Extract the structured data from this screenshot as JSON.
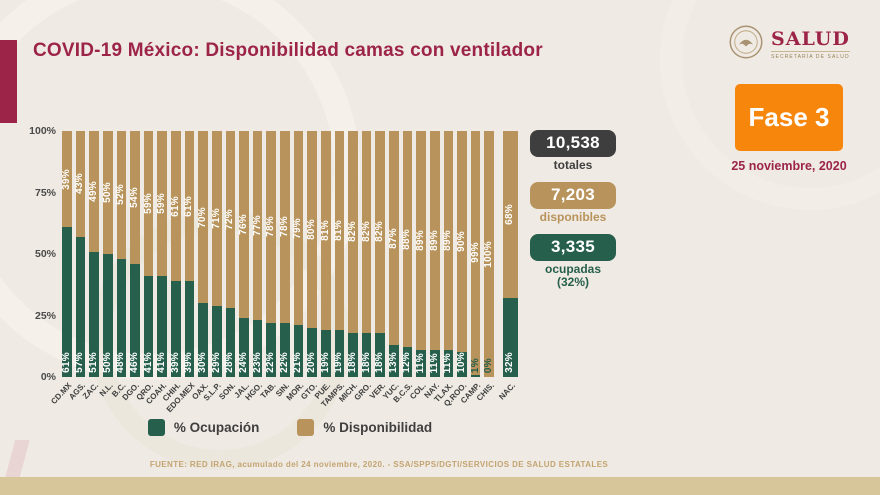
{
  "header": {
    "title": "COVID-19 México: Disponibilidad camas con ventilador",
    "logo_name": "SALUD",
    "logo_subtitle": "SECRETARÍA DE SALUD",
    "phase_badge": "Fase 3",
    "date": "25 noviembre, 2020"
  },
  "stats": [
    {
      "value": "10,538",
      "label": "totales",
      "color": "#3F3E3E"
    },
    {
      "value": "7,203",
      "label": "disponibles",
      "color": "#B8935B"
    },
    {
      "value": "3,335",
      "label": "ocupadas (32%)",
      "label_line1": "ocupadas",
      "label_line2": "(32%)",
      "color": "#265F4C"
    }
  ],
  "chart_data": {
    "type": "bar",
    "stacked": true,
    "title": "COVID-19 México: Disponibilidad camas con ventilador",
    "categories": [
      "CD.MX",
      "AGS.",
      "ZAC.",
      "N.L.",
      "B.C.",
      "DGO.",
      "QRO.",
      "COAH.",
      "CHIH.",
      "EDO.MEX",
      "OAX.",
      "S.L.P.",
      "SON.",
      "JAL.",
      "HGO.",
      "TAB.",
      "SIN.",
      "MOR.",
      "GTO.",
      "PUE.",
      "TAMPS.",
      "MICH.",
      "GRO.",
      "VER.",
      "YUC.",
      "B.C.S.",
      "COL.",
      "NAY.",
      "TLAX.",
      "Q.ROO.",
      "CAMP.",
      "CHIS.",
      "NAC."
    ],
    "series": [
      {
        "name": "% Ocupación",
        "color": "#265F4C",
        "values": [
          61,
          57,
          51,
          50,
          48,
          46,
          41,
          41,
          39,
          39,
          30,
          29,
          28,
          24,
          23,
          22,
          22,
          21,
          20,
          19,
          19,
          18,
          18,
          18,
          13,
          12,
          11,
          11,
          11,
          10,
          1,
          0,
          32
        ]
      },
      {
        "name": "% Disponibilidad",
        "color": "#B8935B",
        "values": [
          39,
          43,
          49,
          50,
          52,
          54,
          59,
          59,
          61,
          61,
          70,
          71,
          72,
          76,
          77,
          78,
          78,
          79,
          80,
          81,
          81,
          82,
          82,
          82,
          87,
          88,
          89,
          89,
          89,
          90,
          99,
          100,
          68
        ]
      }
    ],
    "y_ticks": [
      "100%",
      "75%",
      "50%",
      "25%",
      "0%"
    ],
    "ylim": [
      0,
      100
    ],
    "grid": false,
    "legend_position": "bottom"
  },
  "footer": {
    "source": "FUENTE: RED IRAG, acumulado del 24 noviembre, 2020. -  SSA/SPPS/DGTI/SERVICIOS DE SALUD ESTATALES"
  }
}
